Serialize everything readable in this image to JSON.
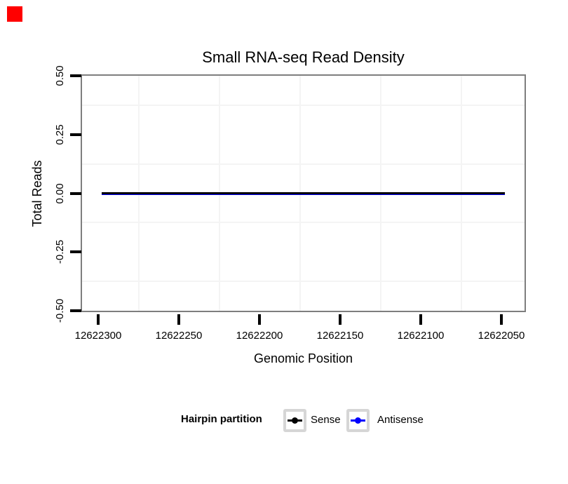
{
  "annotation_marker": {
    "color": "#ff0000"
  },
  "chart_data": {
    "type": "line",
    "title": "Small RNA-seq Read Density",
    "xlabel": "Genomic Position",
    "ylabel": "Total Reads",
    "x_axis": {
      "reversed": true,
      "ticks": [
        12622300,
        12622250,
        12622200,
        12622150,
        12622100,
        12622050
      ],
      "tick_labels": [
        "12622300",
        "12622250",
        "12622200",
        "12622150",
        "12622100",
        "12622050"
      ]
    },
    "y_axis": {
      "range": [
        -0.5,
        0.5
      ],
      "ticks": [
        0.5,
        0.25,
        0,
        -0.25,
        -0.5
      ],
      "tick_labels": [
        "0.50",
        "0.25",
        "0.00",
        "-0.25",
        "-0.50"
      ]
    },
    "grid": "minor-gridlines-only",
    "gridline_color": "#f4f4f4",
    "panel_border_color": "#7e7e7e",
    "series": [
      {
        "name": "Sense",
        "color": "#000000",
        "y_value": 0,
        "x_start": 12622298,
        "x_end": 12622048,
        "line_width": 3
      },
      {
        "name": "Antisense",
        "color": "#0000ff",
        "y_value": 0,
        "x_start": 12622298,
        "x_end": 12622048,
        "line_width": 4
      }
    ],
    "legend": {
      "title": "Hairpin partition",
      "position": "bottom",
      "entries": [
        "Sense",
        "Antisense"
      ]
    }
  }
}
